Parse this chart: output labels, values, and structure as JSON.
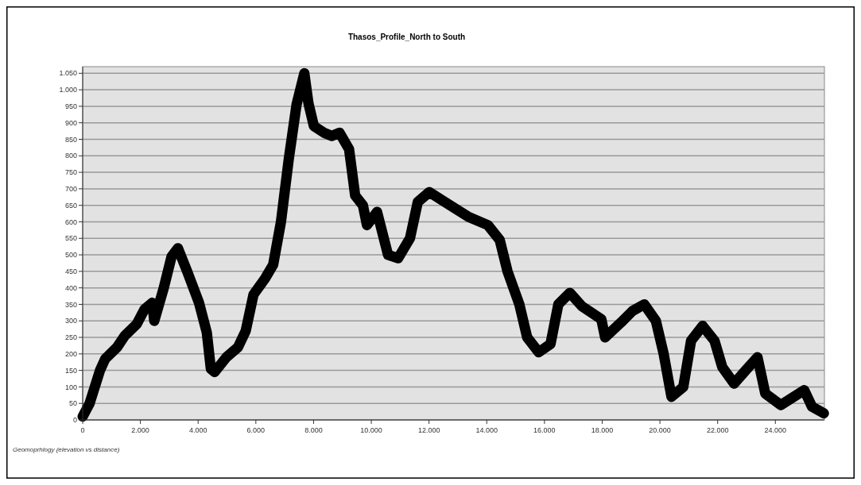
{
  "chart_data": {
    "type": "line",
    "title": "Thasos_Profile_North to South",
    "annotations": [
      "Geomoprhlogy (elevation vs distance)"
    ],
    "x": [
      0,
      240,
      600,
      780,
      1190,
      1460,
      1870,
      2140,
      2410,
      2480,
      2810,
      3080,
      3300,
      3620,
      4030,
      4300,
      4440,
      4570,
      4980,
      5380,
      5650,
      5920,
      6330,
      6600,
      6870,
      7140,
      7410,
      7680,
      7820,
      8010,
      8360,
      8630,
      8900,
      9230,
      9440,
      9710,
      9850,
      10200,
      10580,
      10930,
      11340,
      11610,
      12010,
      12550,
      13370,
      14040,
      14450,
      14720,
      15130,
      15400,
      15800,
      16210,
      16480,
      16880,
      17290,
      17970,
      18100,
      18650,
      19050,
      19460,
      19860,
      20130,
      20400,
      20810,
      21080,
      21480,
      21890,
      22160,
      22570,
      22970,
      23380,
      23650,
      24190,
      24460,
      25000,
      25270,
      25680
    ],
    "series": [
      {
        "color": "#000000",
        "values": [
          10,
          50,
          150,
          185,
          220,
          255,
          290,
          335,
          355,
          300,
          400,
          495,
          520,
          450,
          355,
          265,
          155,
          145,
          190,
          220,
          270,
          380,
          430,
          470,
          600,
          790,
          955,
          1050,
          960,
          890,
          870,
          860,
          870,
          820,
          680,
          650,
          590,
          630,
          500,
          490,
          550,
          660,
          690,
          660,
          615,
          590,
          545,
          450,
          350,
          250,
          205,
          230,
          350,
          385,
          345,
          305,
          250,
          295,
          330,
          350,
          300,
          200,
          70,
          100,
          240,
          285,
          240,
          160,
          110,
          150,
          190,
          80,
          45,
          60,
          90,
          40,
          20
        ]
      }
    ],
    "xlim": [
      0,
      25700
    ],
    "ylim": [
      0,
      1070
    ],
    "xticks": [
      0,
      {
        "value": 2000,
        "label": "2.000"
      },
      {
        "value": 4000,
        "label": "4.000"
      },
      {
        "value": 6000,
        "label": "6.000"
      },
      {
        "value": 8000,
        "label": "8.000"
      },
      {
        "value": 10000,
        "label": "10.000"
      },
      {
        "value": 12000,
        "label": "12.000"
      },
      {
        "value": 14000,
        "label": "14.000"
      },
      {
        "value": 16000,
        "label": "16.000"
      },
      {
        "value": 18000,
        "label": "18.000"
      },
      {
        "value": 20000,
        "label": "20.000"
      },
      {
        "value": 22000,
        "label": "22.000"
      },
      {
        "value": 24000,
        "label": "24.000"
      }
    ],
    "yticks": [
      0,
      50,
      100,
      150,
      200,
      250,
      300,
      350,
      400,
      450,
      500,
      550,
      600,
      650,
      700,
      750,
      800,
      850,
      900,
      950,
      {
        "value": 1000,
        "label": "1.000"
      },
      {
        "value": 1050,
        "label": "1.050"
      }
    ],
    "grid": "y",
    "line_style": "solid"
  }
}
